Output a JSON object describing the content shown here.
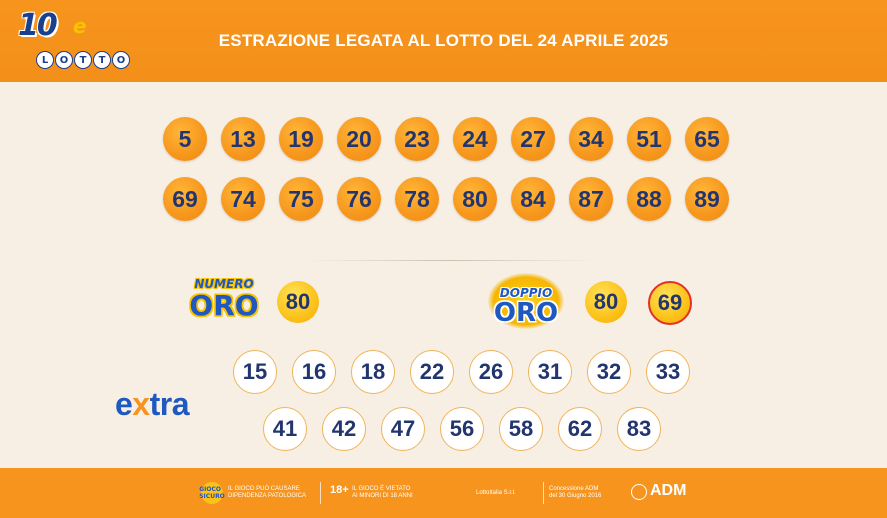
{
  "header": {
    "logo_number": "10",
    "logo_e": "e",
    "logo_word": [
      "L",
      "O",
      "T",
      "T",
      "O"
    ],
    "title": "ESTRAZIONE LEGATA AL LOTTO DEL 24 APRILE 2025"
  },
  "main_draw": {
    "row1": [
      "5",
      "13",
      "19",
      "20",
      "23",
      "24",
      "27",
      "34",
      "51",
      "65"
    ],
    "row2": [
      "69",
      "74",
      "75",
      "76",
      "78",
      "80",
      "84",
      "87",
      "88",
      "89"
    ]
  },
  "numero_oro": {
    "logo_top": "NUMERO",
    "logo_bottom": "ORO",
    "value": "80"
  },
  "doppio_oro": {
    "logo_top": "DOPPIO",
    "logo_bottom": "ORO",
    "values": [
      "80",
      "69"
    ]
  },
  "extra": {
    "logo_prefix": "e",
    "logo_x": "x",
    "logo_suffix": "tra",
    "row1": [
      "15",
      "16",
      "18",
      "22",
      "26",
      "31",
      "32",
      "33"
    ],
    "row2": [
      "41",
      "42",
      "47",
      "56",
      "58",
      "62",
      "83"
    ]
  },
  "footer": {
    "badge_text": "GIOCO SICURO",
    "warning_line1": "IL GIOCO PUÒ CAUSARE",
    "warning_line2": "DIPENDENZA PATOLOGICA",
    "age_badge": "18+",
    "age_line1": "IL GIOCO È VIETATO",
    "age_line2": "AI MINORI DI 18 ANNI",
    "operator": "LottoItalia S.r.l.",
    "concession_line1": "Concessione ADM",
    "concession_line2": "del 30 Giugno 2016",
    "adm_label": "ADM"
  },
  "colors": {
    "header_bg": "#f7941d",
    "page_bg": "#f7efe4",
    "ball_orange": "#f7991e",
    "ball_gold": "#fcc21a",
    "number_text": "#23356f",
    "brand_blue": "#1f58c0"
  }
}
